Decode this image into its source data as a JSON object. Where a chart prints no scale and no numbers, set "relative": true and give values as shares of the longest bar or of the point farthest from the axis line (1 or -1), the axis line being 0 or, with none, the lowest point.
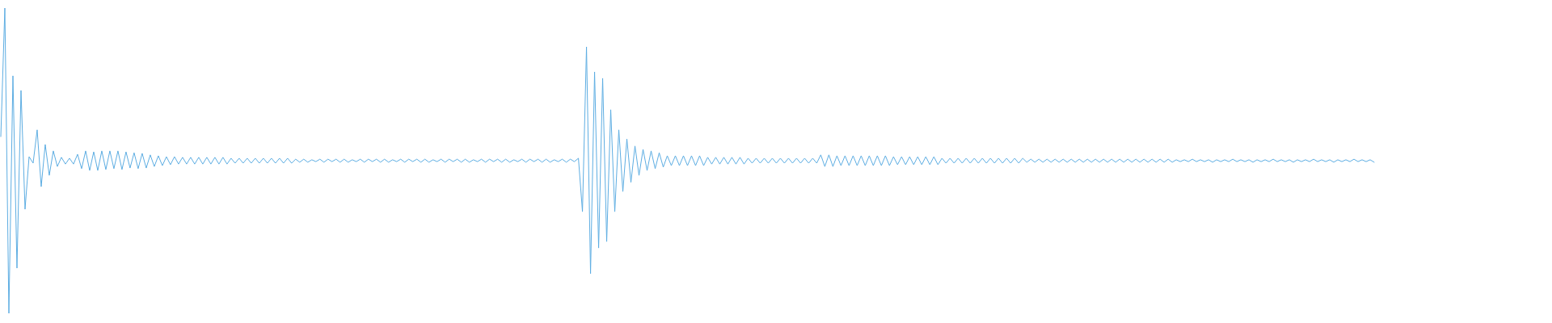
{
  "chart_data": {
    "type": "line",
    "relative": true,
    "tick_labels": false,
    "color": "#5dade2",
    "categories": [
      null,
      null,
      null,
      null,
      null,
      null,
      null,
      null,
      null,
      null,
      null,
      null,
      null,
      null,
      null,
      null,
      null,
      null,
      null,
      null,
      null,
      null,
      null,
      null,
      null,
      null,
      null,
      null,
      null,
      null,
      null,
      null,
      null,
      null,
      null,
      null,
      null,
      null,
      null,
      null,
      null,
      null,
      null,
      null,
      null,
      null,
      null,
      null,
      null,
      null,
      null,
      null,
      null,
      null,
      null,
      null,
      null,
      null,
      null,
      null,
      null,
      null,
      null,
      null,
      null,
      null,
      null,
      null,
      null,
      null,
      null,
      null,
      null,
      null,
      null,
      null,
      null,
      null,
      null,
      null,
      null,
      null,
      null,
      null,
      null,
      null,
      null,
      null,
      null,
      null,
      null,
      null,
      null,
      null,
      null,
      null,
      null,
      null,
      null,
      null,
      null,
      null,
      null,
      null,
      null,
      null,
      null,
      null,
      null,
      null,
      null,
      null,
      null,
      null,
      null,
      null,
      null,
      null,
      null,
      null,
      null,
      null,
      null,
      null,
      null,
      null,
      null,
      null,
      null,
      null,
      null,
      null,
      null,
      null,
      null,
      null,
      null,
      null,
      null,
      null,
      null,
      null,
      null,
      null,
      null,
      null,
      null,
      null,
      null,
      null,
      null,
      null,
      null,
      null,
      null,
      null,
      null,
      null,
      null,
      null,
      null,
      null,
      null,
      null,
      null,
      null,
      null,
      null,
      null,
      null,
      null,
      null,
      null,
      null,
      null,
      null,
      null,
      null,
      null,
      null,
      null,
      null,
      null,
      null,
      null,
      null,
      null,
      null,
      null,
      null,
      null,
      null,
      null,
      null,
      null,
      null,
      null,
      null,
      null,
      null,
      null,
      null,
      null,
      null,
      null,
      null,
      null,
      null,
      null,
      null,
      null,
      null,
      null,
      null,
      null,
      null,
      null,
      null,
      null,
      null,
      null,
      null,
      null,
      null,
      null,
      null,
      null,
      null,
      null,
      null,
      null,
      null,
      null,
      null,
      null,
      null,
      null,
      null,
      null,
      null,
      null,
      null,
      null,
      null,
      null,
      null,
      null,
      null,
      null,
      null,
      null,
      null,
      null,
      null,
      null,
      null,
      null,
      null,
      null,
      null,
      null,
      null,
      null,
      null,
      null,
      null,
      null,
      null,
      null,
      null,
      null,
      null,
      null,
      null,
      null,
      null,
      null,
      null,
      null,
      null,
      null,
      null,
      null,
      null,
      null,
      null,
      null,
      null,
      null,
      null,
      null,
      null,
      null,
      null,
      null,
      null,
      null,
      null,
      null,
      null,
      null,
      null,
      null,
      null,
      null,
      null,
      null,
      null,
      null,
      null,
      null,
      null,
      null,
      null,
      null,
      null,
      null,
      null,
      null,
      null,
      null,
      null,
      null,
      null,
      null,
      null,
      null,
      null,
      null,
      null,
      null,
      null,
      null,
      null,
      null,
      null,
      null,
      null,
      null,
      null,
      null
    ],
    "values": [
      0.579,
      1,
      0,
      0.778,
      0.148,
      0.73,
      0.341,
      0.513,
      0.492,
      0.601,
      0.415,
      0.553,
      0.452,
      0.532,
      0.481,
      0.511,
      0.489,
      0.508,
      0.489,
      0.521,
      0.474,
      0.532,
      0.468,
      0.529,
      0.468,
      0.532,
      0.471,
      0.532,
      0.474,
      0.532,
      0.471,
      0.529,
      0.476,
      0.526,
      0.474,
      0.524,
      0.476,
      0.519,
      0.481,
      0.516,
      0.484,
      0.513,
      0.487,
      0.513,
      0.489,
      0.511,
      0.489,
      0.511,
      0.489,
      0.511,
      0.489,
      0.511,
      0.489,
      0.511,
      0.489,
      0.511,
      0.489,
      0.508,
      0.492,
      0.508,
      0.492,
      0.508,
      0.492,
      0.508,
      0.492,
      0.508,
      0.492,
      0.508,
      0.492,
      0.508,
      0.492,
      0.508,
      0.492,
      0.505,
      0.495,
      0.505,
      0.495,
      0.503,
      0.497,
      0.505,
      0.495,
      0.505,
      0.497,
      0.505,
      0.495,
      0.505,
      0.495,
      0.503,
      0.497,
      0.505,
      0.495,
      0.505,
      0.497,
      0.505,
      0.495,
      0.505,
      0.495,
      0.503,
      0.497,
      0.505,
      0.495,
      0.505,
      0.497,
      0.505,
      0.495,
      0.505,
      0.495,
      0.503,
      0.497,
      0.505,
      0.495,
      0.505,
      0.497,
      0.505,
      0.495,
      0.505,
      0.495,
      0.503,
      0.497,
      0.505,
      0.495,
      0.505,
      0.497,
      0.505,
      0.495,
      0.505,
      0.495,
      0.503,
      0.497,
      0.505,
      0.495,
      0.505,
      0.497,
      0.505,
      0.495,
      0.505,
      0.495,
      0.503,
      0.497,
      0.505,
      0.495,
      0.505,
      0.497,
      0.508,
      0.333,
      0.873,
      0.13,
      0.791,
      0.214,
      0.77,
      0.235,
      0.667,
      0.333,
      0.601,
      0.399,
      0.571,
      0.429,
      0.548,
      0.452,
      0.537,
      0.468,
      0.532,
      0.474,
      0.526,
      0.479,
      0.516,
      0.484,
      0.516,
      0.484,
      0.516,
      0.484,
      0.516,
      0.484,
      0.516,
      0.484,
      0.511,
      0.489,
      0.511,
      0.489,
      0.511,
      0.489,
      0.511,
      0.489,
      0.511,
      0.489,
      0.508,
      0.492,
      0.508,
      0.492,
      0.508,
      0.492,
      0.508,
      0.492,
      0.508,
      0.492,
      0.508,
      0.492,
      0.508,
      0.492,
      0.508,
      0.492,
      0.508,
      0.492,
      0.519,
      0.481,
      0.519,
      0.481,
      0.516,
      0.484,
      0.516,
      0.484,
      0.516,
      0.484,
      0.516,
      0.484,
      0.516,
      0.484,
      0.516,
      0.484,
      0.516,
      0.484,
      0.513,
      0.487,
      0.513,
      0.487,
      0.513,
      0.487,
      0.513,
      0.487,
      0.513,
      0.487,
      0.513,
      0.487,
      0.508,
      0.492,
      0.508,
      0.492,
      0.508,
      0.492,
      0.508,
      0.492,
      0.508,
      0.492,
      0.508,
      0.492,
      0.508,
      0.492,
      0.508,
      0.492,
      0.508,
      0.492,
      0.508,
      0.492,
      0.508,
      0.495,
      0.505,
      0.495,
      0.505,
      0.495,
      0.505,
      0.495,
      0.505,
      0.495,
      0.505,
      0.495,
      0.505,
      0.495,
      0.505,
      0.495,
      0.505,
      0.495,
      0.505,
      0.495,
      0.505,
      0.495,
      0.505,
      0.495,
      0.505,
      0.495,
      0.505,
      0.495,
      0.505,
      0.495,
      0.505,
      0.495,
      0.505,
      0.495,
      0.505,
      0.495,
      0.505,
      0.495,
      0.503,
      0.497,
      0.503,
      0.497,
      0.505,
      0.497,
      0.503,
      0.497,
      0.503,
      0.495,
      0.503,
      0.497,
      0.503,
      0.497,
      0.505,
      0.497,
      0.503,
      0.497,
      0.503,
      0.495,
      0.503,
      0.497,
      0.503,
      0.497,
      0.505,
      0.497,
      0.503,
      0.497,
      0.503,
      0.495,
      0.503,
      0.497,
      0.503,
      0.497,
      0.505,
      0.497,
      0.503,
      0.497,
      0.503,
      0.495,
      0.503,
      0.497,
      0.503,
      0.497,
      0.505,
      0.497,
      0.503,
      0.497,
      0.503,
      0.495
    ]
  }
}
